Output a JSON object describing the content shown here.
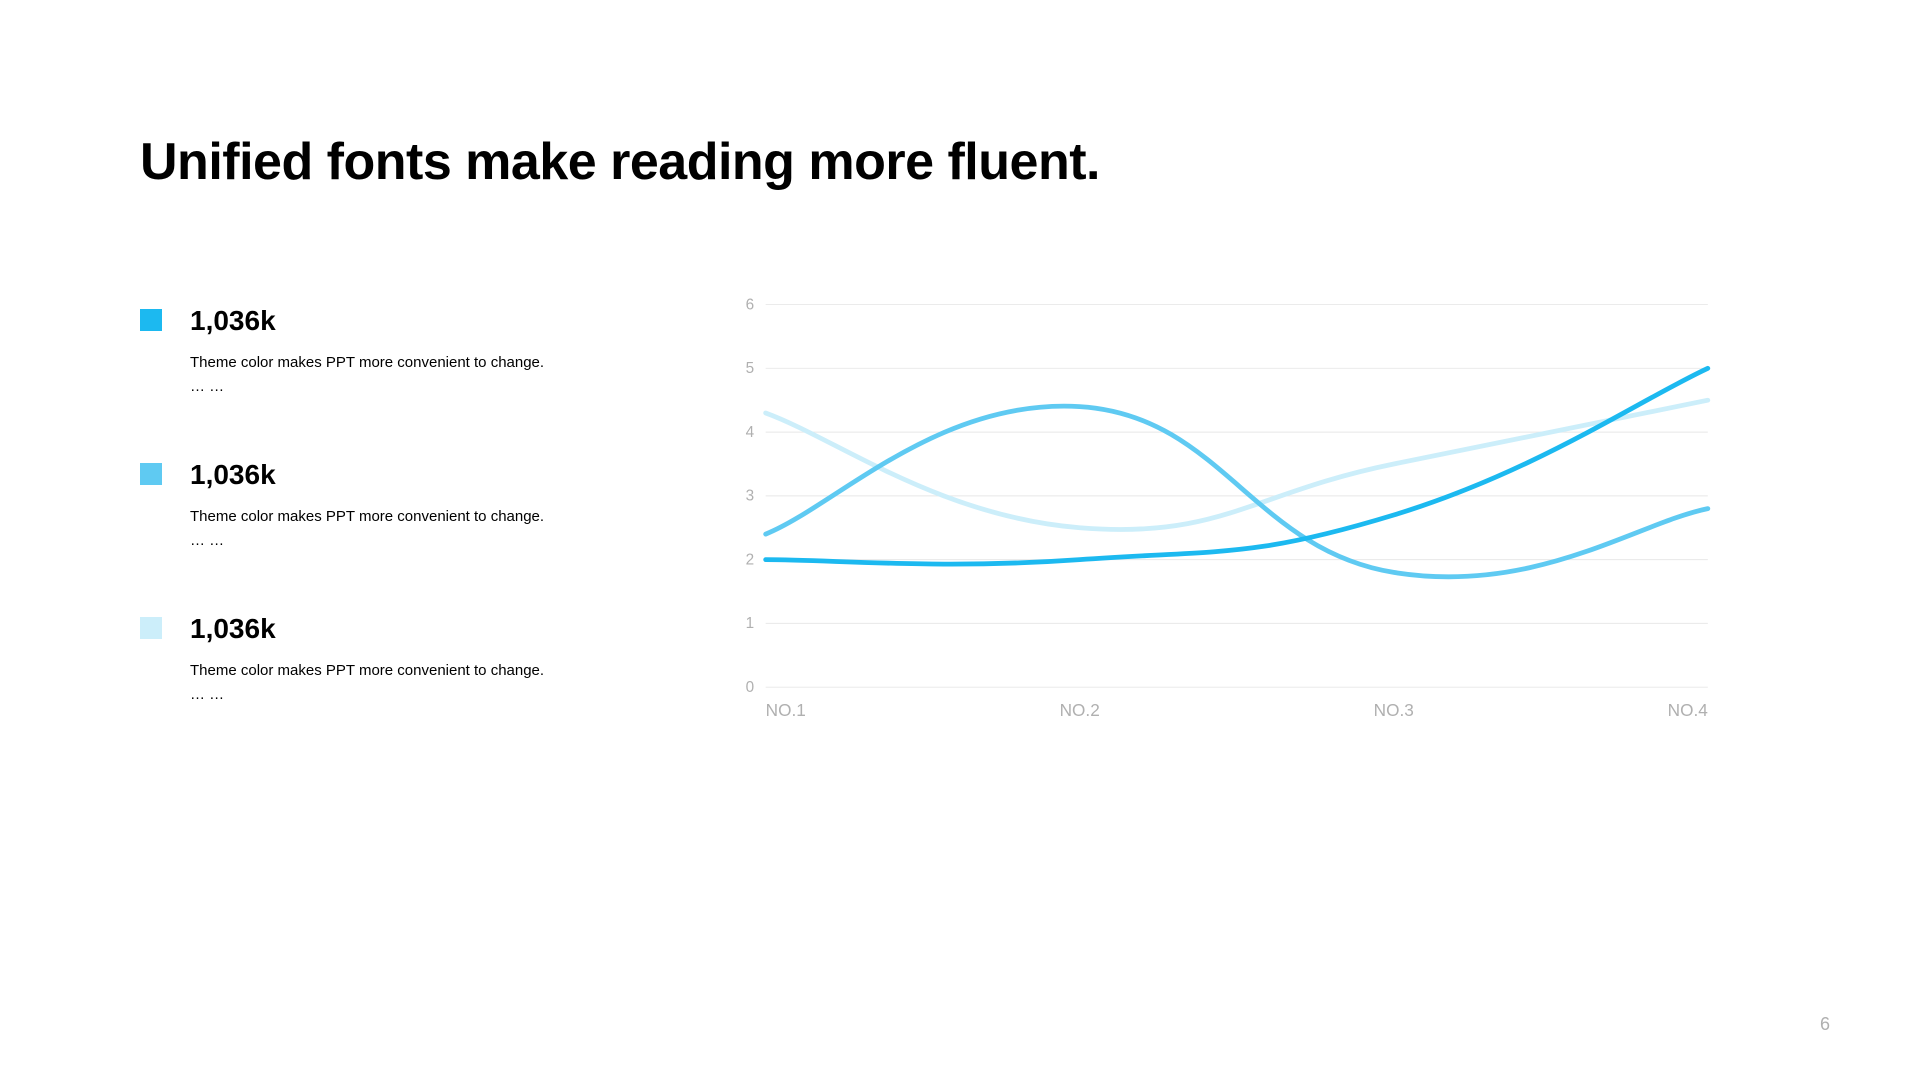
{
  "title": "Unified fonts make reading more fluent.",
  "page_number": "6",
  "stats": [
    {
      "value": "1,036k",
      "desc_line1": "Theme color makes PPT more convenient to change.",
      "desc_line2": "… …",
      "swatch_color": "#1cb9f0"
    },
    {
      "value": "1,036k",
      "desc_line1": "Theme color makes PPT more convenient to change.",
      "desc_line2": "… …",
      "swatch_color": "#5fcaf2"
    },
    {
      "value": "1,036k",
      "desc_line1": "Theme color makes PPT more convenient to change.",
      "desc_line2": "… …",
      "swatch_color": "#cceefa"
    }
  ],
  "chart": {
    "type": "line",
    "categories": [
      "NO.1",
      "NO.2",
      "NO.3",
      "NO.4"
    ],
    "ylim": [
      0,
      6
    ],
    "ytick_step": 1,
    "grid_color": "#e8e8e8",
    "axis_label_color": "#b0b0b0",
    "axis_label_fontsize": 16,
    "background_color": "#ffffff",
    "line_width": 5,
    "series": [
      {
        "values": [
          2.0,
          2.0,
          2.7,
          5.0
        ],
        "color": "#1cb9f0"
      },
      {
        "values": [
          2.4,
          4.4,
          1.8,
          2.8
        ],
        "color": "#5fcaf2"
      },
      {
        "values": [
          4.3,
          2.5,
          3.5,
          4.5
        ],
        "color": "#cceefa"
      }
    ]
  }
}
